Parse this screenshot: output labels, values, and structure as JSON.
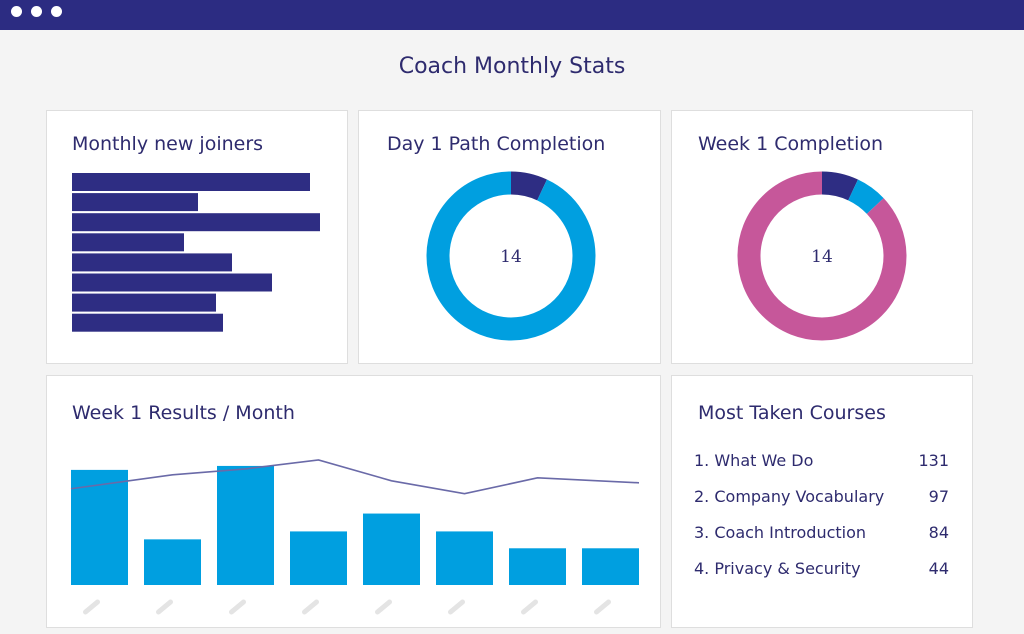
{
  "window": {
    "controls": [
      "close",
      "minimize",
      "maximize"
    ]
  },
  "page": {
    "title": "Coach Monthly Stats"
  },
  "colors": {
    "header": "#2c2c82",
    "navy": "#2e2d83",
    "blue": "#009fe0",
    "pink": "#c6579a",
    "line": "#6a6aa8",
    "tick": "#e4e4e4"
  },
  "joiners": {
    "title": "Monthly new joiners",
    "chart_data": {
      "type": "bar",
      "orientation": "horizontal",
      "values": [
        238,
        126,
        248,
        112,
        160,
        200,
        144,
        151
      ],
      "xlim": [
        0,
        250
      ]
    }
  },
  "day1": {
    "title": "Day 1 Path Completion",
    "center_label": "14",
    "chart_data": {
      "type": "pie",
      "donut": true,
      "values": [
        7,
        93
      ],
      "colors": [
        "#2e2d83",
        "#009fe0"
      ]
    }
  },
  "week1": {
    "title": "Week 1 Completion",
    "center_label": "14",
    "chart_data": {
      "type": "pie",
      "donut": true,
      "values": [
        7,
        6,
        87
      ],
      "colors": [
        "#2e2d83",
        "#009fe0",
        "#c6579a"
      ]
    }
  },
  "results": {
    "title": "Week 1 Results / Month",
    "chart_data": {
      "type": "bar",
      "categories": [
        "",
        "",
        "",
        "",
        "",
        "",
        "",
        ""
      ],
      "series": [
        {
          "name": "bars",
          "type": "bar",
          "values": [
            116,
            46,
            120,
            54,
            72,
            54,
            37,
            37
          ]
        },
        {
          "name": "line",
          "type": "line",
          "values": [
            97,
            111,
            117,
            126,
            105,
            92,
            108,
            103
          ]
        }
      ],
      "ylim": [
        0,
        130
      ]
    }
  },
  "courses": {
    "title": "Most Taken Courses",
    "items": [
      {
        "name": "1. What We Do",
        "count": "131"
      },
      {
        "name": "2. Company Vocabulary",
        "count": "97"
      },
      {
        "name": "3. Coach Introduction",
        "count": "84"
      },
      {
        "name": "4. Privacy & Security",
        "count": "44"
      }
    ]
  }
}
